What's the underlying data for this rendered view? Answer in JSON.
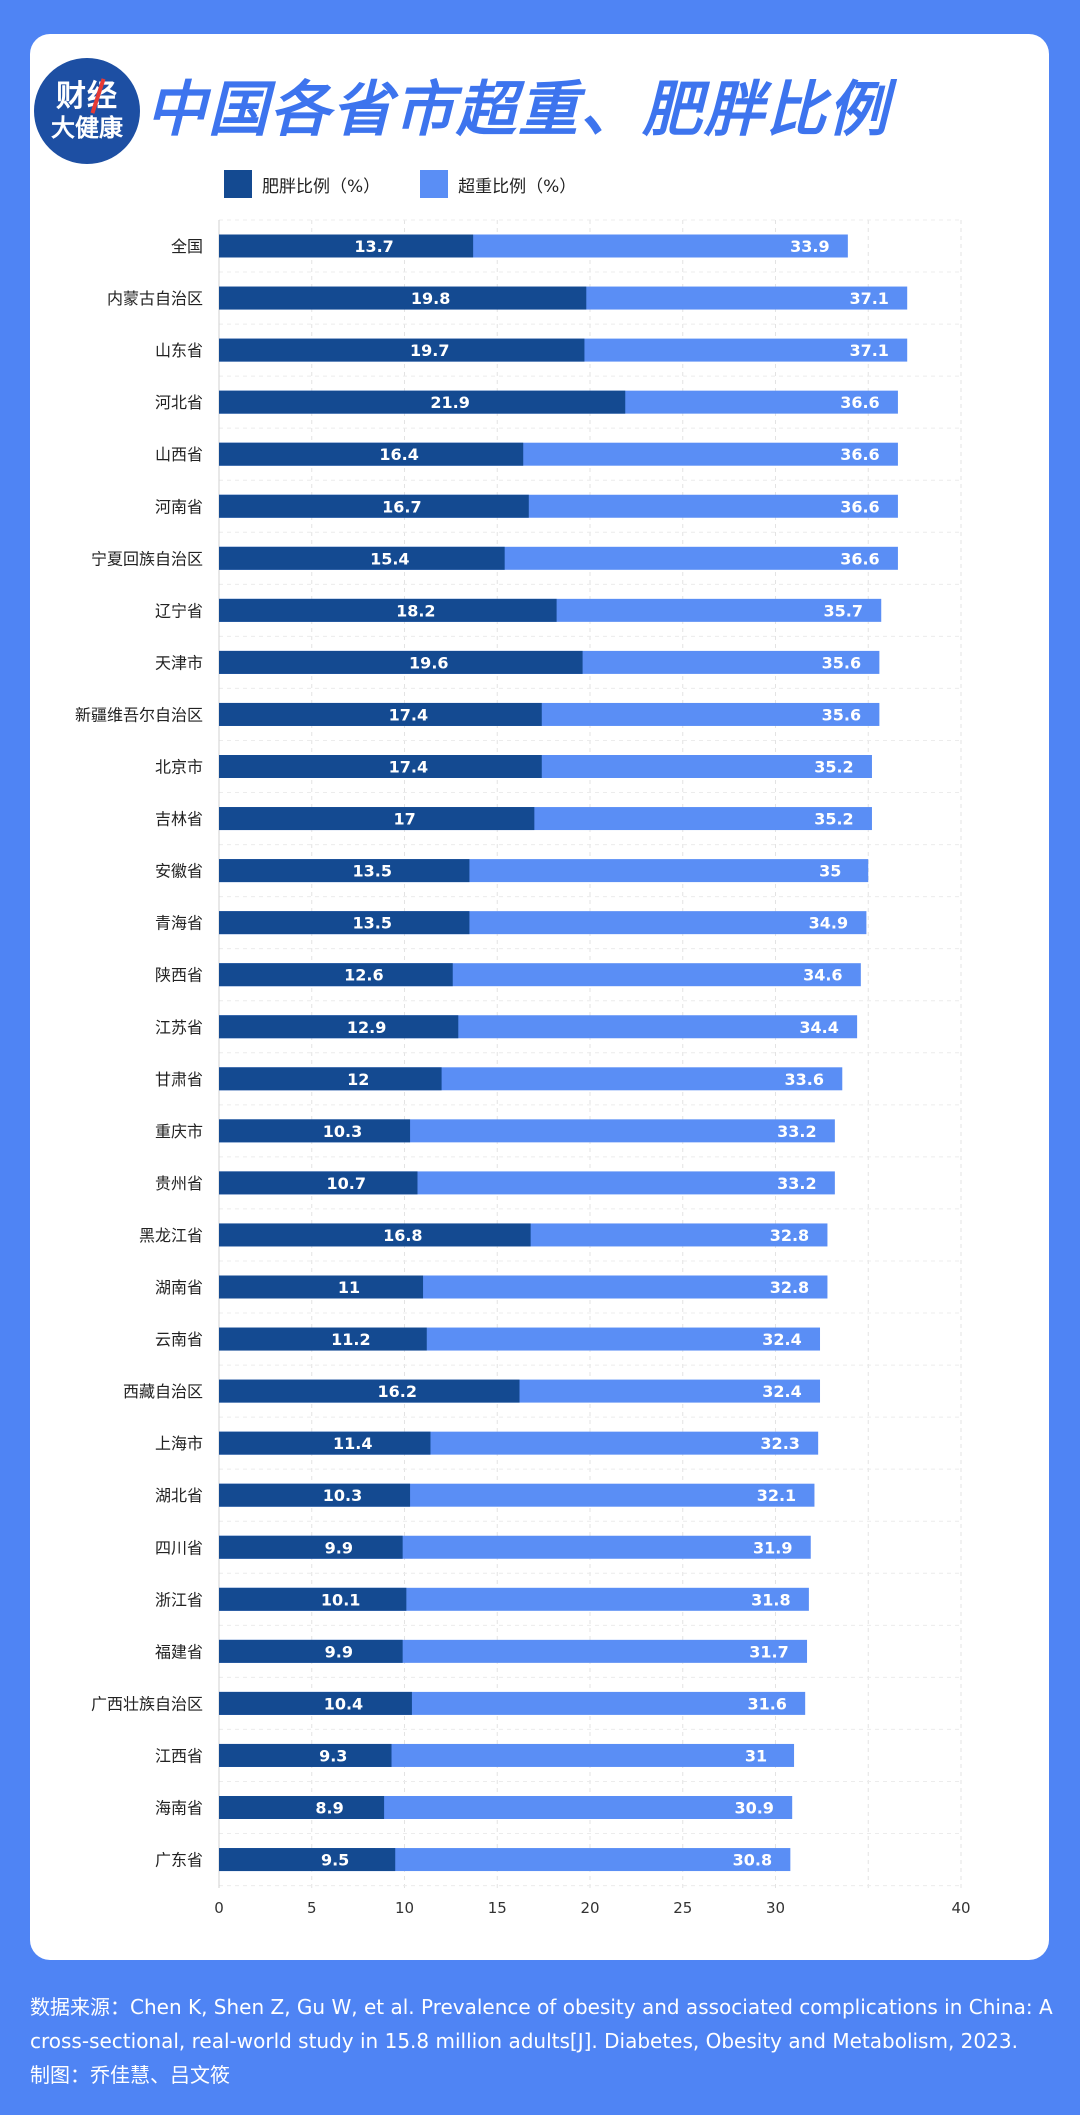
{
  "brand": {
    "line1": "财经",
    "line2": "大健康"
  },
  "title": "中国各省市超重、肥胖比例",
  "colors": {
    "obesity": "#144a91",
    "overweight": "#5a8ef5",
    "background": "#4f84f4"
  },
  "chart_data": {
    "type": "bar",
    "orientation": "horizontal",
    "stacking": "overlay",
    "series": [
      {
        "name": "肥胖比例（%）",
        "values": [
          13.7,
          19.8,
          19.7,
          21.9,
          16.4,
          16.7,
          15.4,
          18.2,
          19.6,
          17.4,
          17.4,
          17,
          13.5,
          13.5,
          12.6,
          12.9,
          12,
          10.3,
          10.7,
          16.8,
          11,
          11.2,
          16.2,
          11.4,
          10.3,
          9.9,
          10.1,
          9.9,
          10.4,
          9.3,
          8.9,
          9.5
        ]
      },
      {
        "name": "超重比例（%）",
        "values": [
          33.9,
          37.1,
          37.1,
          36.6,
          36.6,
          36.6,
          36.6,
          35.7,
          35.6,
          35.6,
          35.2,
          35.2,
          35,
          34.9,
          34.6,
          34.4,
          33.6,
          33.2,
          33.2,
          32.8,
          32.8,
          32.4,
          32.4,
          32.3,
          32.1,
          31.9,
          31.8,
          31.7,
          31.6,
          31,
          30.9,
          30.8
        ]
      }
    ],
    "categories": [
      "全国",
      "内蒙古自治区",
      "山东省",
      "河北省",
      "山西省",
      "河南省",
      "宁夏回族自治区",
      "辽宁省",
      "天津市",
      "新疆维吾尔自治区",
      "北京市",
      "吉林省",
      "安徽省",
      "青海省",
      "陕西省",
      "江苏省",
      "甘肃省",
      "重庆市",
      "贵州省",
      "黑龙江省",
      "湖南省",
      "云南省",
      "西藏自治区",
      "上海市",
      "湖北省",
      "四川省",
      "浙江省",
      "福建省",
      "广西壮族自治区",
      "江西省",
      "海南省",
      "广东省"
    ],
    "xlim": [
      0,
      40
    ],
    "xticks": [
      0,
      5,
      10,
      15,
      20,
      25,
      30,
      40
    ],
    "grid": true,
    "legend": "top-left"
  },
  "footer": {
    "source": "数据来源：Chen K, Shen Z, Gu W, et al. Prevalence of obesity and associated complications in China: A cross-sectional, real-world study in 15.8 million adults[J]. Diabetes, Obesity and Metabolism, 2023.",
    "credit": "制图：乔佳慧、吕文筱"
  }
}
